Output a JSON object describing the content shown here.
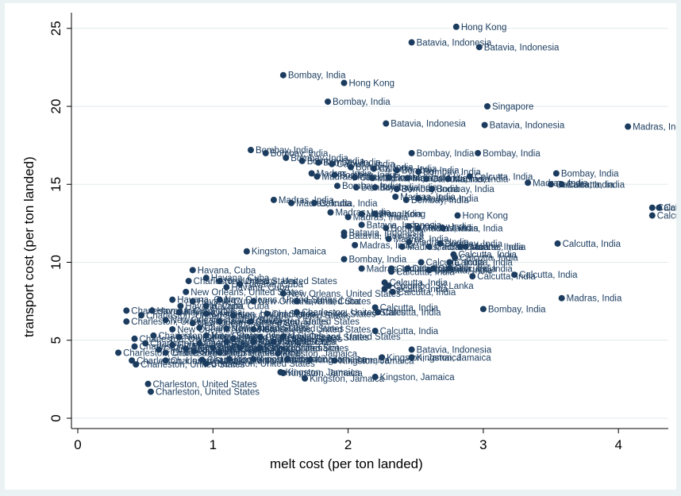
{
  "chart_data": {
    "type": "scatter",
    "title": "",
    "xlabel": "melt cost (per ton landed)",
    "ylabel": "transport cost (per ton landed)",
    "xlim": [
      0,
      4.3
    ],
    "ylim": [
      -0.6,
      25.6
    ],
    "xticks": [
      "0",
      "1",
      "2",
      "3",
      "4"
    ],
    "yticks": [
      "0",
      "5",
      "10",
      "15",
      "20",
      "25"
    ],
    "grid": true,
    "colors": {
      "background": "#eaf2f3",
      "plot": "#ffffff",
      "grid": "#e2eaec",
      "marker": "#1b3c5f",
      "label": "#1b3c5f"
    },
    "points": [
      {
        "x": 2.8,
        "y": 25.1,
        "label": "Hong Kong"
      },
      {
        "x": 2.47,
        "y": 24.1,
        "label": "Batavia, Indonesia"
      },
      {
        "x": 2.97,
        "y": 23.8,
        "label": "Batavia, Indonesia"
      },
      {
        "x": 1.52,
        "y": 22.0,
        "label": "Bombay, India"
      },
      {
        "x": 1.97,
        "y": 21.5,
        "label": "Hong Kong"
      },
      {
        "x": 1.85,
        "y": 20.3,
        "label": "Bombay, India"
      },
      {
        "x": 3.03,
        "y": 20.0,
        "label": "Singapore"
      },
      {
        "x": 2.28,
        "y": 18.9,
        "label": "Batavia, Indonesia"
      },
      {
        "x": 3.01,
        "y": 18.8,
        "label": "Batavia, Indonesia"
      },
      {
        "x": 4.07,
        "y": 18.7,
        "label": "Madras, India"
      },
      {
        "x": 1.28,
        "y": 17.2,
        "label": "Bombay, India"
      },
      {
        "x": 1.39,
        "y": 17.0,
        "label": "Bombay, India"
      },
      {
        "x": 2.47,
        "y": 17.0,
        "label": "Bombay, India"
      },
      {
        "x": 2.96,
        "y": 17.0,
        "label": "Bombay, India"
      },
      {
        "x": 1.54,
        "y": 16.7,
        "label": "Bombay, India"
      },
      {
        "x": 1.66,
        "y": 16.5,
        "label": "Bombay, India"
      },
      {
        "x": 1.78,
        "y": 16.4,
        "label": "Bombay, India"
      },
      {
        "x": 1.88,
        "y": 16.3,
        "label": "Calcutta, India"
      },
      {
        "x": 2.02,
        "y": 16.1,
        "label": "Bombay, India"
      },
      {
        "x": 2.19,
        "y": 16.0,
        "label": "Calcutta, India"
      },
      {
        "x": 2.36,
        "y": 15.9,
        "label": "Bombay, India"
      },
      {
        "x": 2.52,
        "y": 15.8,
        "label": "Bombay, India"
      },
      {
        "x": 1.73,
        "y": 15.7,
        "label": "Madras, India"
      },
      {
        "x": 1.77,
        "y": 15.5,
        "label": "Madras, India"
      },
      {
        "x": 1.9,
        "y": 15.6,
        "label": "Bombay, India"
      },
      {
        "x": 2.05,
        "y": 15.45,
        "label": "Calcutta, India"
      },
      {
        "x": 2.18,
        "y": 15.4,
        "label": "Madras, India"
      },
      {
        "x": 2.3,
        "y": 15.45,
        "label": "Bombay, India"
      },
      {
        "x": 2.44,
        "y": 15.4,
        "label": "Madras, India"
      },
      {
        "x": 2.58,
        "y": 15.35,
        "label": "Calcutta, India"
      },
      {
        "x": 2.74,
        "y": 15.35,
        "label": "Madras, India"
      },
      {
        "x": 2.9,
        "y": 15.5,
        "label": "Calcutta, India"
      },
      {
        "x": 3.54,
        "y": 15.7,
        "label": "Bombay, India"
      },
      {
        "x": 3.33,
        "y": 15.1,
        "label": "Madras, India"
      },
      {
        "x": 3.5,
        "y": 15.0,
        "label": "Calcutta, India"
      },
      {
        "x": 3.58,
        "y": 15.0,
        "label": "Calcutta, India"
      },
      {
        "x": 1.92,
        "y": 14.9,
        "label": "Bombay, India"
      },
      {
        "x": 2.06,
        "y": 14.8,
        "label": "Bombay, India"
      },
      {
        "x": 2.2,
        "y": 14.8,
        "label": "Bombay, India"
      },
      {
        "x": 2.36,
        "y": 14.7,
        "label": "Bombay, India"
      },
      {
        "x": 2.62,
        "y": 14.7,
        "label": "Bombay, India"
      },
      {
        "x": 2.35,
        "y": 14.2,
        "label": "Madras, India"
      },
      {
        "x": 2.52,
        "y": 14.1,
        "label": "Madras, India"
      },
      {
        "x": 2.43,
        "y": 14.0,
        "label": "Bombay, India"
      },
      {
        "x": 1.45,
        "y": 14.0,
        "label": "Madras, India"
      },
      {
        "x": 1.58,
        "y": 13.8,
        "label": "Madras, India"
      },
      {
        "x": 1.75,
        "y": 13.8,
        "label": "Calcutta, India"
      },
      {
        "x": 1.87,
        "y": 13.2,
        "label": "Madras, India"
      },
      {
        "x": 2.1,
        "y": 13.1,
        "label": "Madras, India"
      },
      {
        "x": 2.2,
        "y": 13.1,
        "label": "Hong Kong"
      },
      {
        "x": 2.0,
        "y": 12.9,
        "label": "Madras, India"
      },
      {
        "x": 2.81,
        "y": 13.0,
        "label": "Hong Kong"
      },
      {
        "x": 4.25,
        "y": 13.5,
        "label": "Calcutta, India"
      },
      {
        "x": 4.3,
        "y": 13.5,
        "label": "Calcutta, India"
      },
      {
        "x": 4.25,
        "y": 13.0,
        "label": "Calcutta, India"
      },
      {
        "x": 2.1,
        "y": 12.4,
        "label": "Batavia, Indonesia"
      },
      {
        "x": 2.28,
        "y": 12.2,
        "label": "Bombay, India"
      },
      {
        "x": 2.45,
        "y": 12.3,
        "label": "Bombay, India"
      },
      {
        "x": 2.52,
        "y": 12.2,
        "label": "Madras, India"
      },
      {
        "x": 2.7,
        "y": 12.2,
        "label": "Madras, India"
      },
      {
        "x": 1.97,
        "y": 11.9,
        "label": "Batavia, Indonesia"
      },
      {
        "x": 1.97,
        "y": 11.7,
        "label": "Batavia, Indonesia"
      },
      {
        "x": 2.3,
        "y": 11.5,
        "label": "Madras, India"
      },
      {
        "x": 2.45,
        "y": 11.3,
        "label": "Madras, India"
      },
      {
        "x": 2.68,
        "y": 11.2,
        "label": "Bombay, India"
      },
      {
        "x": 2.83,
        "y": 11.0,
        "label": "Calcutta, India"
      },
      {
        "x": 2.05,
        "y": 11.1,
        "label": "Madras, India"
      },
      {
        "x": 2.4,
        "y": 11.0,
        "label": "Madras, India"
      },
      {
        "x": 2.6,
        "y": 11.0,
        "label": "Madras, India"
      },
      {
        "x": 2.87,
        "y": 11.0,
        "label": "Madras, India"
      },
      {
        "x": 3.55,
        "y": 11.2,
        "label": "Calcutta, India"
      },
      {
        "x": 2.78,
        "y": 10.5,
        "label": "Calcutta, India"
      },
      {
        "x": 2.79,
        "y": 10.3,
        "label": "Calcutta, India"
      },
      {
        "x": 2.75,
        "y": 10.0,
        "label": "Calcutta, India"
      },
      {
        "x": 1.25,
        "y": 10.7,
        "label": "Kingston, Jamaica"
      },
      {
        "x": 1.97,
        "y": 10.2,
        "label": "Bombay, India"
      },
      {
        "x": 2.54,
        "y": 10.0,
        "label": "Calcutta, India"
      },
      {
        "x": 2.1,
        "y": 9.6,
        "label": "Madras, India"
      },
      {
        "x": 2.32,
        "y": 9.6,
        "label": "Calcutta, India"
      },
      {
        "x": 2.32,
        "y": 9.4,
        "label": "Calcutta, India"
      },
      {
        "x": 2.44,
        "y": 9.6,
        "label": "Calcutta, India"
      },
      {
        "x": 2.6,
        "y": 9.5,
        "label": "Calcutta, India"
      },
      {
        "x": 2.63,
        "y": 9.6,
        "label": "Calcutta, India"
      },
      {
        "x": 2.75,
        "y": 9.6,
        "label": "Calcutta, India"
      },
      {
        "x": 2.92,
        "y": 9.1,
        "label": "Calcutta, India"
      },
      {
        "x": 3.23,
        "y": 9.2,
        "label": "Calcutta, India"
      },
      {
        "x": 0.85,
        "y": 9.5,
        "label": "Havana, Cuba"
      },
      {
        "x": 0.95,
        "y": 9.0,
        "label": "Havana, Cuba"
      },
      {
        "x": 1.05,
        "y": 8.8,
        "label": "New Orleans, United States"
      },
      {
        "x": 0.82,
        "y": 8.8,
        "label": "Charleston, United States"
      },
      {
        "x": 1.2,
        "y": 8.6,
        "label": "Havana, Cuba"
      },
      {
        "x": 1.1,
        "y": 8.4,
        "label": "Havana, Cuba"
      },
      {
        "x": 2.27,
        "y": 8.7,
        "label": "Calcutta, India"
      },
      {
        "x": 2.3,
        "y": 8.5,
        "label": "Colombo, Sri Lanka"
      },
      {
        "x": 2.27,
        "y": 8.3,
        "label": "Calcutta, India"
      },
      {
        "x": 2.33,
        "y": 8.1,
        "label": "Calcutta, India"
      },
      {
        "x": 0.8,
        "y": 8.1,
        "label": "New Orleans, United States"
      },
      {
        "x": 1.52,
        "y": 8.0,
        "label": "New Orleans, United States"
      },
      {
        "x": 0.7,
        "y": 7.6,
        "label": "Havana, Cuba"
      },
      {
        "x": 0.85,
        "y": 7.5,
        "label": "Havana, Cuba"
      },
      {
        "x": 1.05,
        "y": 7.6,
        "label": "New Orleans, United States"
      },
      {
        "x": 1.3,
        "y": 7.5,
        "label": "New Orleans, United States"
      },
      {
        "x": 1.62,
        "y": 7.5,
        "label": "Havana, Cuba"
      },
      {
        "x": 0.76,
        "y": 7.2,
        "label": "Havana, Cuba"
      },
      {
        "x": 0.95,
        "y": 7.2,
        "label": "Havana, Cuba"
      },
      {
        "x": 2.2,
        "y": 7.1,
        "label": "Calcutta, India"
      },
      {
        "x": 3.58,
        "y": 7.7,
        "label": "Madras, India"
      },
      {
        "x": 3.0,
        "y": 7.0,
        "label": "Bombay, India"
      },
      {
        "x": 0.36,
        "y": 6.9,
        "label": "Charleston, United States"
      },
      {
        "x": 0.47,
        "y": 6.6,
        "label": "Charleston, United States"
      },
      {
        "x": 0.55,
        "y": 6.9,
        "label": "Havana, Cuba"
      },
      {
        "x": 0.75,
        "y": 6.8,
        "label": "Havana, Cuba"
      },
      {
        "x": 0.95,
        "y": 6.7,
        "label": "Charleston, United States"
      },
      {
        "x": 1.15,
        "y": 6.6,
        "label": "New Orleans, United States"
      },
      {
        "x": 1.4,
        "y": 6.7,
        "label": "Charleston, United States"
      },
      {
        "x": 1.62,
        "y": 6.8,
        "label": "Charleston, United States"
      },
      {
        "x": 2.22,
        "y": 6.8,
        "label": "Calcutta, India"
      },
      {
        "x": 0.36,
        "y": 6.2,
        "label": "Charleston, United States"
      },
      {
        "x": 0.65,
        "y": 6.3,
        "label": "New Orleans, United States"
      },
      {
        "x": 0.85,
        "y": 6.1,
        "label": "New Orleans, United States"
      },
      {
        "x": 1.05,
        "y": 6.2,
        "label": "Charleston, United States"
      },
      {
        "x": 1.28,
        "y": 6.2,
        "label": "Charleston, United States"
      },
      {
        "x": 0.7,
        "y": 5.7,
        "label": "New Orleans, United States"
      },
      {
        "x": 0.9,
        "y": 5.8,
        "label": "Charleston, United States"
      },
      {
        "x": 1.1,
        "y": 5.75,
        "label": "New Orleans, United States"
      },
      {
        "x": 1.3,
        "y": 5.7,
        "label": "New Orleans, United States"
      },
      {
        "x": 2.2,
        "y": 5.6,
        "label": "Calcutta, India"
      },
      {
        "x": 0.56,
        "y": 5.3,
        "label": "Charleston, United States"
      },
      {
        "x": 0.75,
        "y": 5.2,
        "label": "New Orleans, United States"
      },
      {
        "x": 0.95,
        "y": 5.3,
        "label": "New Orleans, United States"
      },
      {
        "x": 1.15,
        "y": 5.1,
        "label": "Charleston, United States"
      },
      {
        "x": 1.35,
        "y": 5.2,
        "label": "Charleston, United States"
      },
      {
        "x": 1.52,
        "y": 5.25,
        "label": "New Orleans, United States"
      },
      {
        "x": 0.42,
        "y": 5.1,
        "label": "Charleston, United States"
      },
      {
        "x": 0.5,
        "y": 4.8,
        "label": "Charleston, United States"
      },
      {
        "x": 0.7,
        "y": 4.7,
        "label": "Charleston, United States"
      },
      {
        "x": 0.9,
        "y": 4.8,
        "label": "Charleston, United States"
      },
      {
        "x": 1.1,
        "y": 4.9,
        "label": "Charleston, United States"
      },
      {
        "x": 1.3,
        "y": 4.9,
        "label": "Havana, Cuba"
      },
      {
        "x": 1.45,
        "y": 4.9,
        "label": "Havana, Cuba"
      },
      {
        "x": 0.42,
        "y": 4.6,
        "label": "Charleston, United States"
      },
      {
        "x": 0.6,
        "y": 4.4,
        "label": "Charleston, United States"
      },
      {
        "x": 0.8,
        "y": 4.45,
        "label": "Charleston, United States"
      },
      {
        "x": 1.0,
        "y": 4.5,
        "label": "Charleston, United States"
      },
      {
        "x": 1.2,
        "y": 4.5,
        "label": "Charleston, United States"
      },
      {
        "x": 1.35,
        "y": 4.5,
        "label": "Kingston, Jamaica"
      },
      {
        "x": 0.3,
        "y": 4.2,
        "label": "Charleston, United States"
      },
      {
        "x": 0.65,
        "y": 4.2,
        "label": "Charleston, United States"
      },
      {
        "x": 0.86,
        "y": 4.3,
        "label": "Charleston, United States"
      },
      {
        "x": 1.05,
        "y": 4.2,
        "label": "Kingston, Jamaica"
      },
      {
        "x": 1.48,
        "y": 4.15,
        "label": "Kingston, Jamaica"
      },
      {
        "x": 2.47,
        "y": 4.4,
        "label": "Batavia, Indonesia"
      },
      {
        "x": 0.4,
        "y": 3.7,
        "label": "Charleston, United States"
      },
      {
        "x": 0.65,
        "y": 3.7,
        "label": "Charleston, United States"
      },
      {
        "x": 0.92,
        "y": 3.75,
        "label": "Charleston, United States"
      },
      {
        "x": 1.12,
        "y": 3.8,
        "label": "Kingston, Jamaica"
      },
      {
        "x": 1.3,
        "y": 3.8,
        "label": "Kingston, Jamaica"
      },
      {
        "x": 1.55,
        "y": 3.8,
        "label": "Kingston, Jamaica"
      },
      {
        "x": 1.72,
        "y": 3.75,
        "label": "Kingston, Jamaica"
      },
      {
        "x": 1.9,
        "y": 3.7,
        "label": "Kingston, Jamaica"
      },
      {
        "x": 2.25,
        "y": 3.9,
        "label": "Kingston, Jamaica"
      },
      {
        "x": 2.47,
        "y": 3.9,
        "label": "Kingston, Jamaica"
      },
      {
        "x": 0.43,
        "y": 3.45,
        "label": "Charleston, United States"
      },
      {
        "x": 0.95,
        "y": 3.5,
        "label": "Charleston, United States"
      },
      {
        "x": 1.5,
        "y": 2.95,
        "label": "Kingston, Jamaica"
      },
      {
        "x": 1.52,
        "y": 2.9,
        "label": "Kingston, Jamaica"
      },
      {
        "x": 1.68,
        "y": 2.55,
        "label": "Kingston, Jamaica"
      },
      {
        "x": 2.2,
        "y": 2.65,
        "label": "Kingston, Jamaica"
      },
      {
        "x": 0.52,
        "y": 2.2,
        "label": "Charleston, United States"
      },
      {
        "x": 0.54,
        "y": 1.7,
        "label": "Charleston, United States"
      }
    ]
  }
}
